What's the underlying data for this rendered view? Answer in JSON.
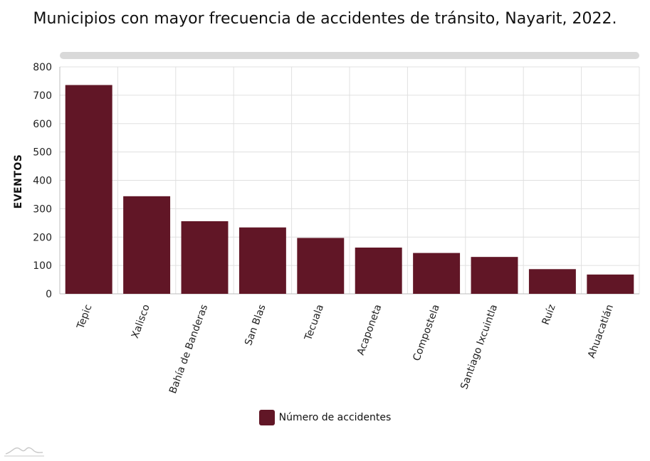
{
  "chart_data": {
    "type": "bar",
    "title": "Municipios con mayor frecuencia de accidentes de tránsito, Nayarit, 2022.",
    "ylabel": "EVENTOS",
    "xlabel": "",
    "ylim": [
      0,
      800
    ],
    "yticks": [
      0,
      100,
      200,
      300,
      400,
      500,
      600,
      700,
      800
    ],
    "categories": [
      "Tepic",
      "Xalisco",
      "Bahía de Banderas",
      "San Blas",
      "Tecuala",
      "Acaponeta",
      "Compostela",
      "Santiago Ixcuintla",
      "Ruíz",
      "Ahuacatlán"
    ],
    "series": [
      {
        "name": "Número de accidentes",
        "values": [
          736,
          344,
          256,
          234,
          197,
          163,
          144,
          130,
          87,
          68
        ]
      }
    ],
    "grid": true,
    "legend_position": "bottom-center"
  },
  "colors": {
    "bar": "#611626",
    "grid": "#e0e0e0",
    "axis": "#bdbdbd",
    "scrollbar": "#d9d9d9"
  },
  "icons": {
    "logo": "mountain-logo-icon"
  }
}
